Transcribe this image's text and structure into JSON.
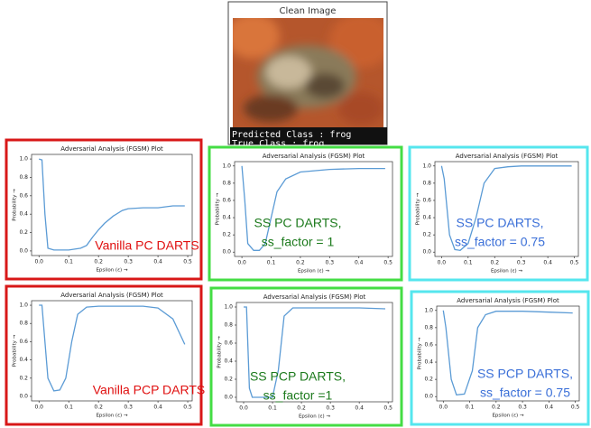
{
  "image": {
    "title": "Clean Image",
    "predicted": "Predicted Class : frog",
    "true": "True Class : frog"
  },
  "chart_data": [
    {
      "type": "line",
      "title": "Adversarial Analysis (FGSM) Plot",
      "xlabel": "Epsilon (ε) →",
      "ylabel": "Probability →",
      "annotation": [
        "Vanilla PC DARTS"
      ],
      "annotation_color": "#e01010",
      "frame_color": "#d81818",
      "xlim": [
        -0.025,
        0.515
      ],
      "ylim": [
        -0.05,
        1.05
      ],
      "xticks": [
        {
          "value": 0,
          "label": "0.0"
        },
        {
          "value": 0.1,
          "label": "0.1"
        },
        {
          "value": 0.2,
          "label": "0.2"
        },
        {
          "value": 0.3,
          "label": "0.3"
        },
        {
          "value": 0.4,
          "label": "0.4"
        },
        {
          "value": 0.5,
          "label": "0.5"
        }
      ],
      "yticks": [
        {
          "value": 0,
          "label": "0.0"
        },
        {
          "value": 0.2,
          "label": "0.2"
        },
        {
          "value": 0.4,
          "label": "0.4"
        },
        {
          "value": 0.6,
          "label": "0.6"
        },
        {
          "value": 0.8,
          "label": "0.8"
        },
        {
          "value": 1,
          "label": "1.0"
        }
      ],
      "series": [
        {
          "color": "#5b9bd5",
          "x": [
            0,
            0.01,
            0.02,
            0.03,
            0.05,
            0.08,
            0.1,
            0.12,
            0.14,
            0.16,
            0.18,
            0.2,
            0.22,
            0.25,
            0.28,
            0.3,
            0.35,
            0.4,
            0.45,
            0.49
          ],
          "values": [
            1.0,
            0.99,
            0.4,
            0.03,
            0.01,
            0.01,
            0.01,
            0.02,
            0.03,
            0.06,
            0.15,
            0.23,
            0.3,
            0.38,
            0.44,
            0.46,
            0.47,
            0.47,
            0.49,
            0.49
          ]
        }
      ]
    },
    {
      "type": "line",
      "title": "Adversarial Analysis (FGSM) Plot",
      "xlabel": "Epsilon (ε) →",
      "ylabel": "Probability →",
      "annotation": [
        "SS PC DARTS,",
        "ss_factor = 1"
      ],
      "annotation_color": "#1c7a1c",
      "frame_color": "#44dd44",
      "xlim": [
        -0.025,
        0.515
      ],
      "ylim": [
        -0.05,
        1.05
      ],
      "xticks": [
        {
          "value": 0,
          "label": "0.0"
        },
        {
          "value": 0.1,
          "label": "0.1"
        },
        {
          "value": 0.2,
          "label": "0.2"
        },
        {
          "value": 0.3,
          "label": "0.3"
        },
        {
          "value": 0.4,
          "label": "0.4"
        },
        {
          "value": 0.5,
          "label": "0.5"
        }
      ],
      "yticks": [
        {
          "value": 0,
          "label": "0.0"
        },
        {
          "value": 0.2,
          "label": "0.2"
        },
        {
          "value": 0.4,
          "label": "0.4"
        },
        {
          "value": 0.6,
          "label": "0.6"
        },
        {
          "value": 0.8,
          "label": "0.8"
        },
        {
          "value": 1,
          "label": "1.0"
        }
      ],
      "series": [
        {
          "color": "#5b9bd5",
          "x": [
            0,
            0.01,
            0.02,
            0.04,
            0.06,
            0.08,
            0.1,
            0.12,
            0.15,
            0.2,
            0.3,
            0.4,
            0.49
          ],
          "values": [
            1.0,
            0.6,
            0.1,
            0.02,
            0.02,
            0.1,
            0.4,
            0.7,
            0.85,
            0.93,
            0.96,
            0.97,
            0.97
          ]
        }
      ]
    },
    {
      "type": "line",
      "title": "Adversarial Analysis (FGSM) Plot",
      "xlabel": "Epsilon (ε) →",
      "ylabel": "Probability →",
      "annotation": [
        "SS PC DARTS,",
        "ss_factor = 0.75"
      ],
      "annotation_color": "#3a6fd8",
      "frame_color": "#55e6ee",
      "xlim": [
        -0.025,
        0.515
      ],
      "ylim": [
        -0.05,
        1.05
      ],
      "xticks": [
        {
          "value": 0,
          "label": "0.0"
        },
        {
          "value": 0.1,
          "label": "0.1"
        },
        {
          "value": 0.2,
          "label": "0.2"
        },
        {
          "value": 0.3,
          "label": "0.3"
        },
        {
          "value": 0.4,
          "label": "0.4"
        },
        {
          "value": 0.5,
          "label": "0.5"
        }
      ],
      "yticks": [
        {
          "value": 0,
          "label": "0.0"
        },
        {
          "value": 0.2,
          "label": "0.2"
        },
        {
          "value": 0.4,
          "label": "0.4"
        },
        {
          "value": 0.6,
          "label": "0.6"
        },
        {
          "value": 0.8,
          "label": "0.8"
        },
        {
          "value": 1,
          "label": "1.0"
        }
      ],
      "series": [
        {
          "color": "#5b9bd5",
          "x": [
            0,
            0.01,
            0.03,
            0.05,
            0.07,
            0.1,
            0.13,
            0.16,
            0.2,
            0.25,
            0.3,
            0.4,
            0.49
          ],
          "values": [
            1.0,
            0.85,
            0.2,
            0.03,
            0.02,
            0.1,
            0.4,
            0.8,
            0.97,
            0.99,
            1.0,
            1.0,
            1.0
          ]
        }
      ]
    },
    {
      "type": "line",
      "title": "Adversarial Analysis (FGSM) Plot",
      "xlabel": "Epsilon (ε) →",
      "ylabel": "Probability →",
      "annotation": [
        "Vanilla PCP DARTS"
      ],
      "annotation_color": "#e01010",
      "frame_color": "#d81818",
      "xlim": [
        -0.025,
        0.515
      ],
      "ylim": [
        -0.05,
        1.05
      ],
      "xticks": [
        {
          "value": 0,
          "label": "0.0"
        },
        {
          "value": 0.1,
          "label": "0.1"
        },
        {
          "value": 0.2,
          "label": "0.2"
        },
        {
          "value": 0.3,
          "label": "0.3"
        },
        {
          "value": 0.4,
          "label": "0.4"
        },
        {
          "value": 0.5,
          "label": "0.5"
        }
      ],
      "yticks": [
        {
          "value": 0,
          "label": "0.0"
        },
        {
          "value": 0.2,
          "label": "0.2"
        },
        {
          "value": 0.4,
          "label": "0.4"
        },
        {
          "value": 0.6,
          "label": "0.6"
        },
        {
          "value": 0.8,
          "label": "0.8"
        },
        {
          "value": 1,
          "label": "1.0"
        }
      ],
      "series": [
        {
          "color": "#5b9bd5",
          "x": [
            0,
            0.01,
            0.03,
            0.05,
            0.07,
            0.09,
            0.11,
            0.13,
            0.16,
            0.2,
            0.3,
            0.35,
            0.4,
            0.45,
            0.49
          ],
          "values": [
            1.0,
            1.0,
            0.2,
            0.06,
            0.07,
            0.2,
            0.6,
            0.9,
            0.98,
            0.99,
            0.99,
            0.99,
            0.97,
            0.85,
            0.57
          ]
        }
      ]
    },
    {
      "type": "line",
      "title": "Adversarial Analysis (FGSM) Plot",
      "xlabel": "Epsilon (ε) →",
      "ylabel": "Probability →",
      "annotation": [
        "SS PCP DARTS,",
        "ss_factor =1"
      ],
      "annotation_color": "#1c7a1c",
      "frame_color": "#44dd44",
      "xlim": [
        -0.025,
        0.515
      ],
      "ylim": [
        -0.05,
        1.05
      ],
      "xticks": [
        {
          "value": 0,
          "label": "0.0"
        },
        {
          "value": 0.1,
          "label": "0.1"
        },
        {
          "value": 0.2,
          "label": "0.2"
        },
        {
          "value": 0.3,
          "label": "0.3"
        },
        {
          "value": 0.4,
          "label": "0.4"
        },
        {
          "value": 0.5,
          "label": "0.5"
        }
      ],
      "yticks": [
        {
          "value": 0,
          "label": "0.0"
        },
        {
          "value": 0.2,
          "label": "0.2"
        },
        {
          "value": 0.4,
          "label": "0.4"
        },
        {
          "value": 0.6,
          "label": "0.6"
        },
        {
          "value": 0.8,
          "label": "0.8"
        },
        {
          "value": 1,
          "label": "1.0"
        }
      ],
      "series": [
        {
          "color": "#5b9bd5",
          "x": [
            0,
            0.01,
            0.02,
            0.03,
            0.06,
            0.1,
            0.12,
            0.14,
            0.17,
            0.3,
            0.4,
            0.49
          ],
          "values": [
            1.0,
            1.0,
            0.1,
            0.0,
            0.0,
            0.0,
            0.3,
            0.9,
            0.99,
            0.99,
            0.99,
            0.98
          ]
        }
      ]
    },
    {
      "type": "line",
      "title": "Adversarial Analysis (FGSM) Plot",
      "xlabel": "Epsilon (ε) →",
      "ylabel": "Probability →",
      "annotation": [
        "SS PCP DARTS,",
        "ss_factor = 0.75"
      ],
      "annotation_color": "#3a6fd8",
      "frame_color": "#55e6ee",
      "xlim": [
        -0.025,
        0.515
      ],
      "ylim": [
        -0.05,
        1.05
      ],
      "xticks": [
        {
          "value": 0,
          "label": "0.0"
        },
        {
          "value": 0.1,
          "label": "0.1"
        },
        {
          "value": 0.2,
          "label": "0.2"
        },
        {
          "value": 0.3,
          "label": "0.3"
        },
        {
          "value": 0.4,
          "label": "0.4"
        },
        {
          "value": 0.5,
          "label": "0.5"
        }
      ],
      "yticks": [
        {
          "value": 0,
          "label": "0.0"
        },
        {
          "value": 0.2,
          "label": "0.2"
        },
        {
          "value": 0.4,
          "label": "0.4"
        },
        {
          "value": 0.6,
          "label": "0.6"
        },
        {
          "value": 0.8,
          "label": "0.8"
        },
        {
          "value": 1,
          "label": "1.0"
        }
      ],
      "series": [
        {
          "color": "#5b9bd5",
          "x": [
            0,
            0.01,
            0.03,
            0.05,
            0.08,
            0.11,
            0.13,
            0.16,
            0.2,
            0.3,
            0.4,
            0.49
          ],
          "values": [
            1.0,
            0.8,
            0.2,
            0.02,
            0.03,
            0.3,
            0.8,
            0.95,
            0.99,
            0.99,
            0.98,
            0.97
          ]
        }
      ]
    }
  ]
}
